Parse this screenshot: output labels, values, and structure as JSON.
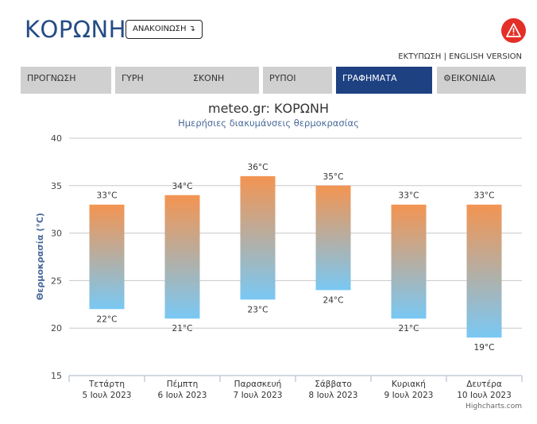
{
  "header": {
    "title": "ΚΟΡΩΝΗ",
    "announce_label": "ΑΝΑΚΟΙΝΩΣΗ ↴",
    "print_label": "ΕΚΤΥΠΩΣΗ",
    "separator": "|",
    "english_label": "ENGLISH VERSION",
    "warning_icon": "warning-triangle-icon",
    "warning_color": "#e32f27"
  },
  "tabs": [
    {
      "label": "ΠΡΟΓΝΩΣΗ",
      "active": false
    },
    {
      "label": "ΓΥΡΗ",
      "active": false
    },
    {
      "label": "ΣΚΟΝΗ",
      "active": false
    },
    {
      "label": "ΡΥΠΟΙ",
      "active": false
    },
    {
      "label": "ΓΡΑΦΗΜΑΤΑ",
      "active": true
    },
    {
      "label": "⚙ΕΙΚΟΝΙΔΙΑ",
      "active": false
    }
  ],
  "colors": {
    "accent": "#1e4182",
    "bar_top": "#f39451",
    "bar_bottom": "#79c8f4"
  },
  "credits": "Highcharts.com",
  "chart_data": {
    "type": "bar",
    "title": "meteo.gr: ΚΟΡΩΝΗ",
    "subtitle": "Ημερήσιες διακυμάνσεις θερμοκρασίας",
    "ylabel": "Θερμοκρασία (°C)",
    "xlabel": "",
    "ylim": [
      15,
      40
    ],
    "yticks": [
      "15",
      "20",
      "25",
      "30",
      "35",
      "40"
    ],
    "grid": true,
    "categories": [
      {
        "day": "Τετάρτη",
        "date": "5 Ιουλ 2023"
      },
      {
        "day": "Πέμπτη",
        "date": "6 Ιουλ 2023"
      },
      {
        "day": "Παρασκευή",
        "date": "7 Ιουλ 2023"
      },
      {
        "day": "Σάββατο",
        "date": "8 Ιουλ 2023"
      },
      {
        "day": "Κυριακή",
        "date": "9 Ιουλ 2023"
      },
      {
        "day": "Δευτέρα",
        "date": "10 Ιουλ 2023"
      }
    ],
    "series": [
      {
        "low": 22,
        "high": 33,
        "low_label": "22°C",
        "high_label": "33°C"
      },
      {
        "low": 21,
        "high": 34,
        "low_label": "21°C",
        "high_label": "34°C"
      },
      {
        "low": 23,
        "high": 36,
        "low_label": "23°C",
        "high_label": "36°C"
      },
      {
        "low": 24,
        "high": 35,
        "low_label": "24°C",
        "high_label": "35°C"
      },
      {
        "low": 21,
        "high": 33,
        "low_label": "21°C",
        "high_label": "33°C"
      },
      {
        "low": 19,
        "high": 33,
        "low_label": "19°C",
        "high_label": "33°C"
      }
    ]
  }
}
